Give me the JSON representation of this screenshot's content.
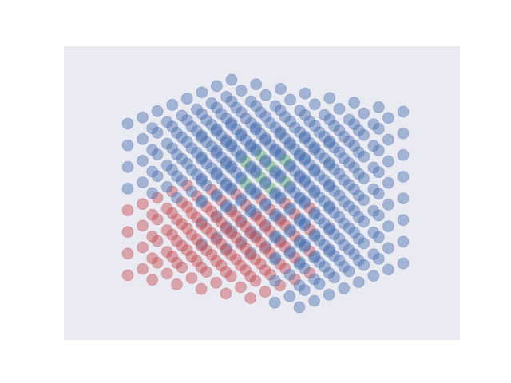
{
  "chart_data": {
    "type": "scatter3d",
    "x": [
      0,
      1,
      2,
      3,
      4,
      5,
      6,
      7
    ],
    "y": [
      0,
      1,
      2,
      3,
      4,
      5,
      6,
      7
    ],
    "z": [
      0,
      1,
      2,
      3,
      4,
      5,
      6,
      7
    ],
    "colors": [
      "#4c72b0",
      "#c44e52",
      "#55a868"
    ],
    "classes": [
      [
        [
          1,
          1,
          1,
          1,
          0,
          0,
          0,
          0
        ],
        [
          1,
          1,
          1,
          1,
          0,
          0,
          0,
          0
        ],
        [
          1,
          1,
          1,
          1,
          0,
          0,
          0,
          0
        ],
        [
          1,
          1,
          1,
          1,
          0,
          0,
          0,
          0
        ],
        [
          1,
          1,
          1,
          1,
          0,
          0,
          0,
          0
        ],
        [
          0,
          0,
          0,
          0,
          0,
          0,
          0,
          0
        ],
        [
          0,
          0,
          0,
          0,
          0,
          0,
          0,
          0
        ],
        [
          0,
          0,
          0,
          0,
          0,
          0,
          0,
          0
        ]
      ],
      [
        [
          1,
          1,
          1,
          1,
          0,
          0,
          0,
          0
        ],
        [
          1,
          1,
          1,
          1,
          0,
          0,
          0,
          0
        ],
        [
          1,
          1,
          1,
          1,
          0,
          0,
          0,
          0
        ],
        [
          1,
          1,
          1,
          1,
          0,
          0,
          0,
          0
        ],
        [
          1,
          1,
          1,
          1,
          0,
          0,
          0,
          0
        ],
        [
          0,
          0,
          0,
          0,
          0,
          0,
          0,
          0
        ],
        [
          0,
          0,
          0,
          0,
          0,
          0,
          0,
          0
        ],
        [
          0,
          0,
          0,
          0,
          0,
          0,
          0,
          0
        ]
      ],
      [
        [
          1,
          1,
          1,
          1,
          0,
          0,
          0,
          0
        ],
        [
          1,
          1,
          1,
          1,
          0,
          0,
          0,
          0
        ],
        [
          1,
          1,
          1,
          1,
          0,
          0,
          0,
          0
        ],
        [
          1,
          1,
          1,
          1,
          0,
          0,
          0,
          0
        ],
        [
          1,
          1,
          1,
          1,
          0,
          0,
          0,
          0
        ],
        [
          0,
          0,
          0,
          0,
          0,
          0,
          0,
          0
        ],
        [
          0,
          0,
          0,
          0,
          0,
          0,
          0,
          0
        ],
        [
          0,
          0,
          0,
          0,
          0,
          0,
          0,
          0
        ]
      ],
      [
        [
          1,
          1,
          1,
          1,
          0,
          0,
          0,
          0
        ],
        [
          1,
          1,
          1,
          1,
          0,
          0,
          0,
          0
        ],
        [
          1,
          1,
          1,
          1,
          0,
          0,
          0,
          0
        ],
        [
          1,
          1,
          1,
          1,
          2,
          2,
          0,
          0
        ],
        [
          1,
          1,
          1,
          1,
          2,
          2,
          0,
          0
        ],
        [
          0,
          0,
          0,
          0,
          0,
          0,
          0,
          0
        ],
        [
          0,
          0,
          0,
          0,
          0,
          0,
          0,
          0
        ],
        [
          0,
          0,
          0,
          0,
          0,
          0,
          0,
          0
        ]
      ],
      [
        [
          1,
          1,
          1,
          1,
          0,
          0,
          0,
          0
        ],
        [
          1,
          1,
          1,
          1,
          0,
          0,
          0,
          0
        ],
        [
          1,
          1,
          1,
          1,
          0,
          0,
          0,
          0
        ],
        [
          1,
          1,
          1,
          1,
          2,
          2,
          0,
          0
        ],
        [
          1,
          1,
          1,
          1,
          2,
          2,
          0,
          0
        ],
        [
          0,
          0,
          0,
          0,
          0,
          0,
          0,
          0
        ],
        [
          0,
          0,
          0,
          0,
          0,
          0,
          0,
          0
        ],
        [
          0,
          0,
          0,
          0,
          0,
          0,
          0,
          0
        ]
      ],
      [
        [
          1,
          1,
          1,
          1,
          0,
          0,
          0,
          0
        ],
        [
          1,
          1,
          1,
          1,
          0,
          0,
          0,
          0
        ],
        [
          1,
          1,
          1,
          1,
          0,
          0,
          0,
          0
        ],
        [
          1,
          1,
          1,
          1,
          0,
          0,
          0,
          0
        ],
        [
          1,
          1,
          1,
          1,
          0,
          0,
          0,
          0
        ],
        [
          0,
          0,
          0,
          0,
          0,
          0,
          0,
          0
        ],
        [
          0,
          0,
          0,
          0,
          0,
          0,
          0,
          0
        ],
        [
          0,
          0,
          0,
          0,
          0,
          0,
          0,
          0
        ]
      ],
      [
        [
          0,
          0,
          0,
          0,
          0,
          0,
          0,
          0
        ],
        [
          0,
          0,
          0,
          0,
          0,
          0,
          0,
          0
        ],
        [
          0,
          0,
          0,
          0,
          0,
          0,
          0,
          0
        ],
        [
          0,
          0,
          0,
          0,
          0,
          0,
          0,
          0
        ],
        [
          0,
          0,
          0,
          0,
          0,
          0,
          0,
          0
        ],
        [
          0,
          0,
          0,
          0,
          0,
          0,
          0,
          0
        ],
        [
          0,
          0,
          0,
          0,
          0,
          0,
          0,
          0
        ],
        [
          0,
          0,
          0,
          0,
          0,
          0,
          0,
          0
        ]
      ],
      [
        [
          0,
          0,
          0,
          0,
          0,
          0,
          0,
          0
        ],
        [
          0,
          0,
          0,
          0,
          0,
          0,
          0,
          0
        ],
        [
          0,
          0,
          0,
          0,
          0,
          0,
          0,
          0
        ],
        [
          0,
          0,
          0,
          0,
          0,
          0,
          0,
          0
        ],
        [
          0,
          0,
          0,
          0,
          0,
          0,
          0,
          0
        ],
        [
          0,
          0,
          0,
          0,
          0,
          0,
          0,
          0
        ],
        [
          0,
          0,
          0,
          0,
          0,
          0,
          0,
          0
        ],
        [
          0,
          0,
          0,
          0,
          0,
          0,
          0,
          0
        ]
      ]
    ]
  }
}
